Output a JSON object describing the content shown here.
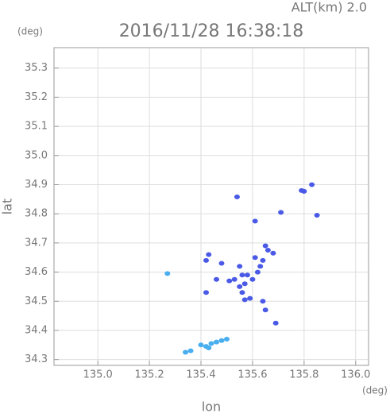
{
  "chart_data": {
    "type": "scatter",
    "title": "2016/11/28 16:38:18",
    "subtitle": "ALT(km) 2.0",
    "xlabel": "lon",
    "ylabel": "lat",
    "xunit": "(deg)",
    "yunit": "(deg)",
    "xlim": [
      134.83,
      136.05
    ],
    "ylim": [
      34.28,
      35.37
    ],
    "xticks": [
      {
        "value": 135,
        "label": "135.0"
      },
      135.2,
      135.4,
      135.6,
      135.8,
      {
        "value": 136,
        "label": "136.0"
      }
    ],
    "yticks": [
      34.3,
      34.4,
      34.5,
      34.6,
      34.7,
      34.8,
      34.9,
      {
        "value": 35,
        "label": "35.0"
      },
      35.1,
      35.2,
      35.3
    ],
    "grid": true,
    "series": [
      {
        "color": "#4a5ae6",
        "x": [
          135.79,
          135.8,
          135.83,
          135.85,
          135.71,
          135.61,
          135.54,
          135.65,
          135.66,
          135.68,
          135.64,
          135.63,
          135.61,
          135.62,
          135.6,
          135.58,
          135.55,
          135.56,
          135.57,
          135.55,
          135.56,
          135.57,
          135.59,
          135.64,
          135.65,
          135.69,
          135.48,
          135.42,
          135.43,
          135.46,
          135.42,
          135.51,
          135.53
        ],
        "values": [
          34.88,
          34.877,
          34.9,
          34.795,
          34.805,
          34.775,
          34.858,
          34.69,
          34.675,
          34.665,
          34.64,
          34.62,
          34.65,
          34.6,
          34.575,
          34.59,
          34.62,
          34.59,
          34.56,
          34.55,
          34.53,
          34.505,
          34.51,
          34.5,
          34.47,
          34.425,
          34.63,
          34.64,
          34.66,
          34.575,
          34.53,
          34.57,
          34.575
        ]
      },
      {
        "color": "#48aef0",
        "x": [
          135.27,
          135.34,
          135.36,
          135.4,
          135.42,
          135.43,
          135.44,
          135.46,
          135.48,
          135.5
        ],
        "values": [
          34.595,
          34.325,
          34.33,
          34.35,
          34.345,
          34.34,
          34.355,
          34.36,
          34.365,
          34.37
        ]
      }
    ]
  }
}
